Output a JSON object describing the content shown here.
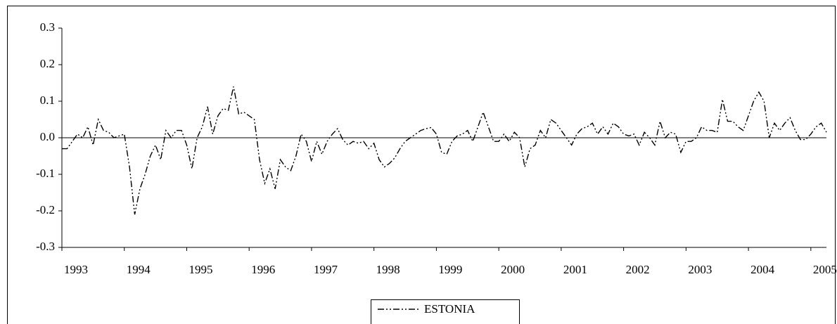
{
  "chart_data": {
    "type": "line",
    "categories": [
      "1993",
      null,
      null,
      null,
      null,
      null,
      null,
      null,
      null,
      null,
      null,
      null,
      "1994",
      null,
      null,
      null,
      null,
      null,
      null,
      null,
      null,
      null,
      null,
      null,
      "1995",
      null,
      null,
      null,
      null,
      null,
      null,
      null,
      null,
      null,
      null,
      null,
      "1996",
      null,
      null,
      null,
      null,
      null,
      null,
      null,
      null,
      null,
      null,
      null,
      "1997",
      null,
      null,
      null,
      null,
      null,
      null,
      null,
      null,
      null,
      null,
      null,
      "1998",
      null,
      null,
      null,
      null,
      null,
      null,
      null,
      null,
      null,
      null,
      null,
      "1999",
      null,
      null,
      null,
      null,
      null,
      null,
      null,
      null,
      null,
      null,
      null,
      "2000",
      null,
      null,
      null,
      null,
      null,
      null,
      null,
      null,
      null,
      null,
      null,
      "2001",
      null,
      null,
      null,
      null,
      null,
      null,
      null,
      null,
      null,
      null,
      null,
      "2002",
      null,
      null,
      null,
      null,
      null,
      null,
      null,
      null,
      null,
      null,
      null,
      "2003",
      null,
      null,
      null,
      null,
      null,
      null,
      null,
      null,
      null,
      null,
      null,
      "2004",
      null,
      null,
      null,
      null,
      null,
      null,
      null,
      null,
      null,
      null,
      null,
      "2005",
      null,
      null,
      null
    ],
    "series": [
      {
        "name": "ESTONIA",
        "color": "#000000",
        "linestyle": "dashdotdot",
        "values": [
          -0.03,
          -0.03,
          -0.01,
          0.01,
          0.0,
          0.03,
          -0.02,
          0.05,
          0.02,
          0.015,
          0.0,
          0.005,
          0.01,
          -0.08,
          -0.21,
          -0.14,
          -0.1,
          -0.05,
          -0.02,
          -0.06,
          0.02,
          0.0,
          0.02,
          0.02,
          -0.02,
          -0.085,
          0.0,
          0.03,
          0.085,
          0.01,
          0.06,
          0.08,
          0.075,
          0.14,
          0.065,
          0.07,
          0.06,
          0.05,
          -0.06,
          -0.125,
          -0.085,
          -0.14,
          -0.06,
          -0.08,
          -0.09,
          -0.05,
          0.01,
          -0.01,
          -0.065,
          -0.01,
          -0.045,
          -0.01,
          0.01,
          0.025,
          -0.005,
          -0.02,
          -0.01,
          -0.015,
          -0.01,
          -0.03,
          -0.015,
          -0.06,
          -0.08,
          -0.07,
          -0.055,
          -0.03,
          -0.01,
          0.0,
          0.01,
          0.02,
          0.025,
          0.028,
          0.01,
          -0.04,
          -0.045,
          -0.01,
          0.005,
          0.01,
          0.02,
          -0.01,
          0.03,
          0.07,
          0.03,
          -0.01,
          -0.01,
          0.01,
          -0.01,
          0.015,
          0.0,
          -0.08,
          -0.03,
          -0.02,
          0.02,
          0.0,
          0.05,
          0.04,
          0.02,
          0.0,
          -0.02,
          0.01,
          0.025,
          0.03,
          0.04,
          0.01,
          0.03,
          0.01,
          0.04,
          0.03,
          0.01,
          0.005,
          0.01,
          -0.02,
          0.015,
          0.0,
          -0.02,
          0.045,
          0.0,
          0.015,
          0.01,
          -0.04,
          -0.01,
          -0.01,
          0.0,
          0.03,
          0.02,
          0.02,
          0.015,
          0.105,
          0.045,
          0.045,
          0.03,
          0.02,
          0.06,
          0.1,
          0.125,
          0.1,
          0.0,
          0.04,
          0.02,
          0.04,
          0.055,
          0.02,
          -0.005,
          -0.005,
          0.01,
          0.03,
          0.04,
          0.015
        ]
      }
    ],
    "ylim": [
      -0.3,
      0.3
    ],
    "yticks": [
      -0.3,
      -0.2,
      -0.1,
      {
        "value": 0,
        "label": "0.0"
      },
      0.1,
      0.2,
      0.3
    ]
  }
}
